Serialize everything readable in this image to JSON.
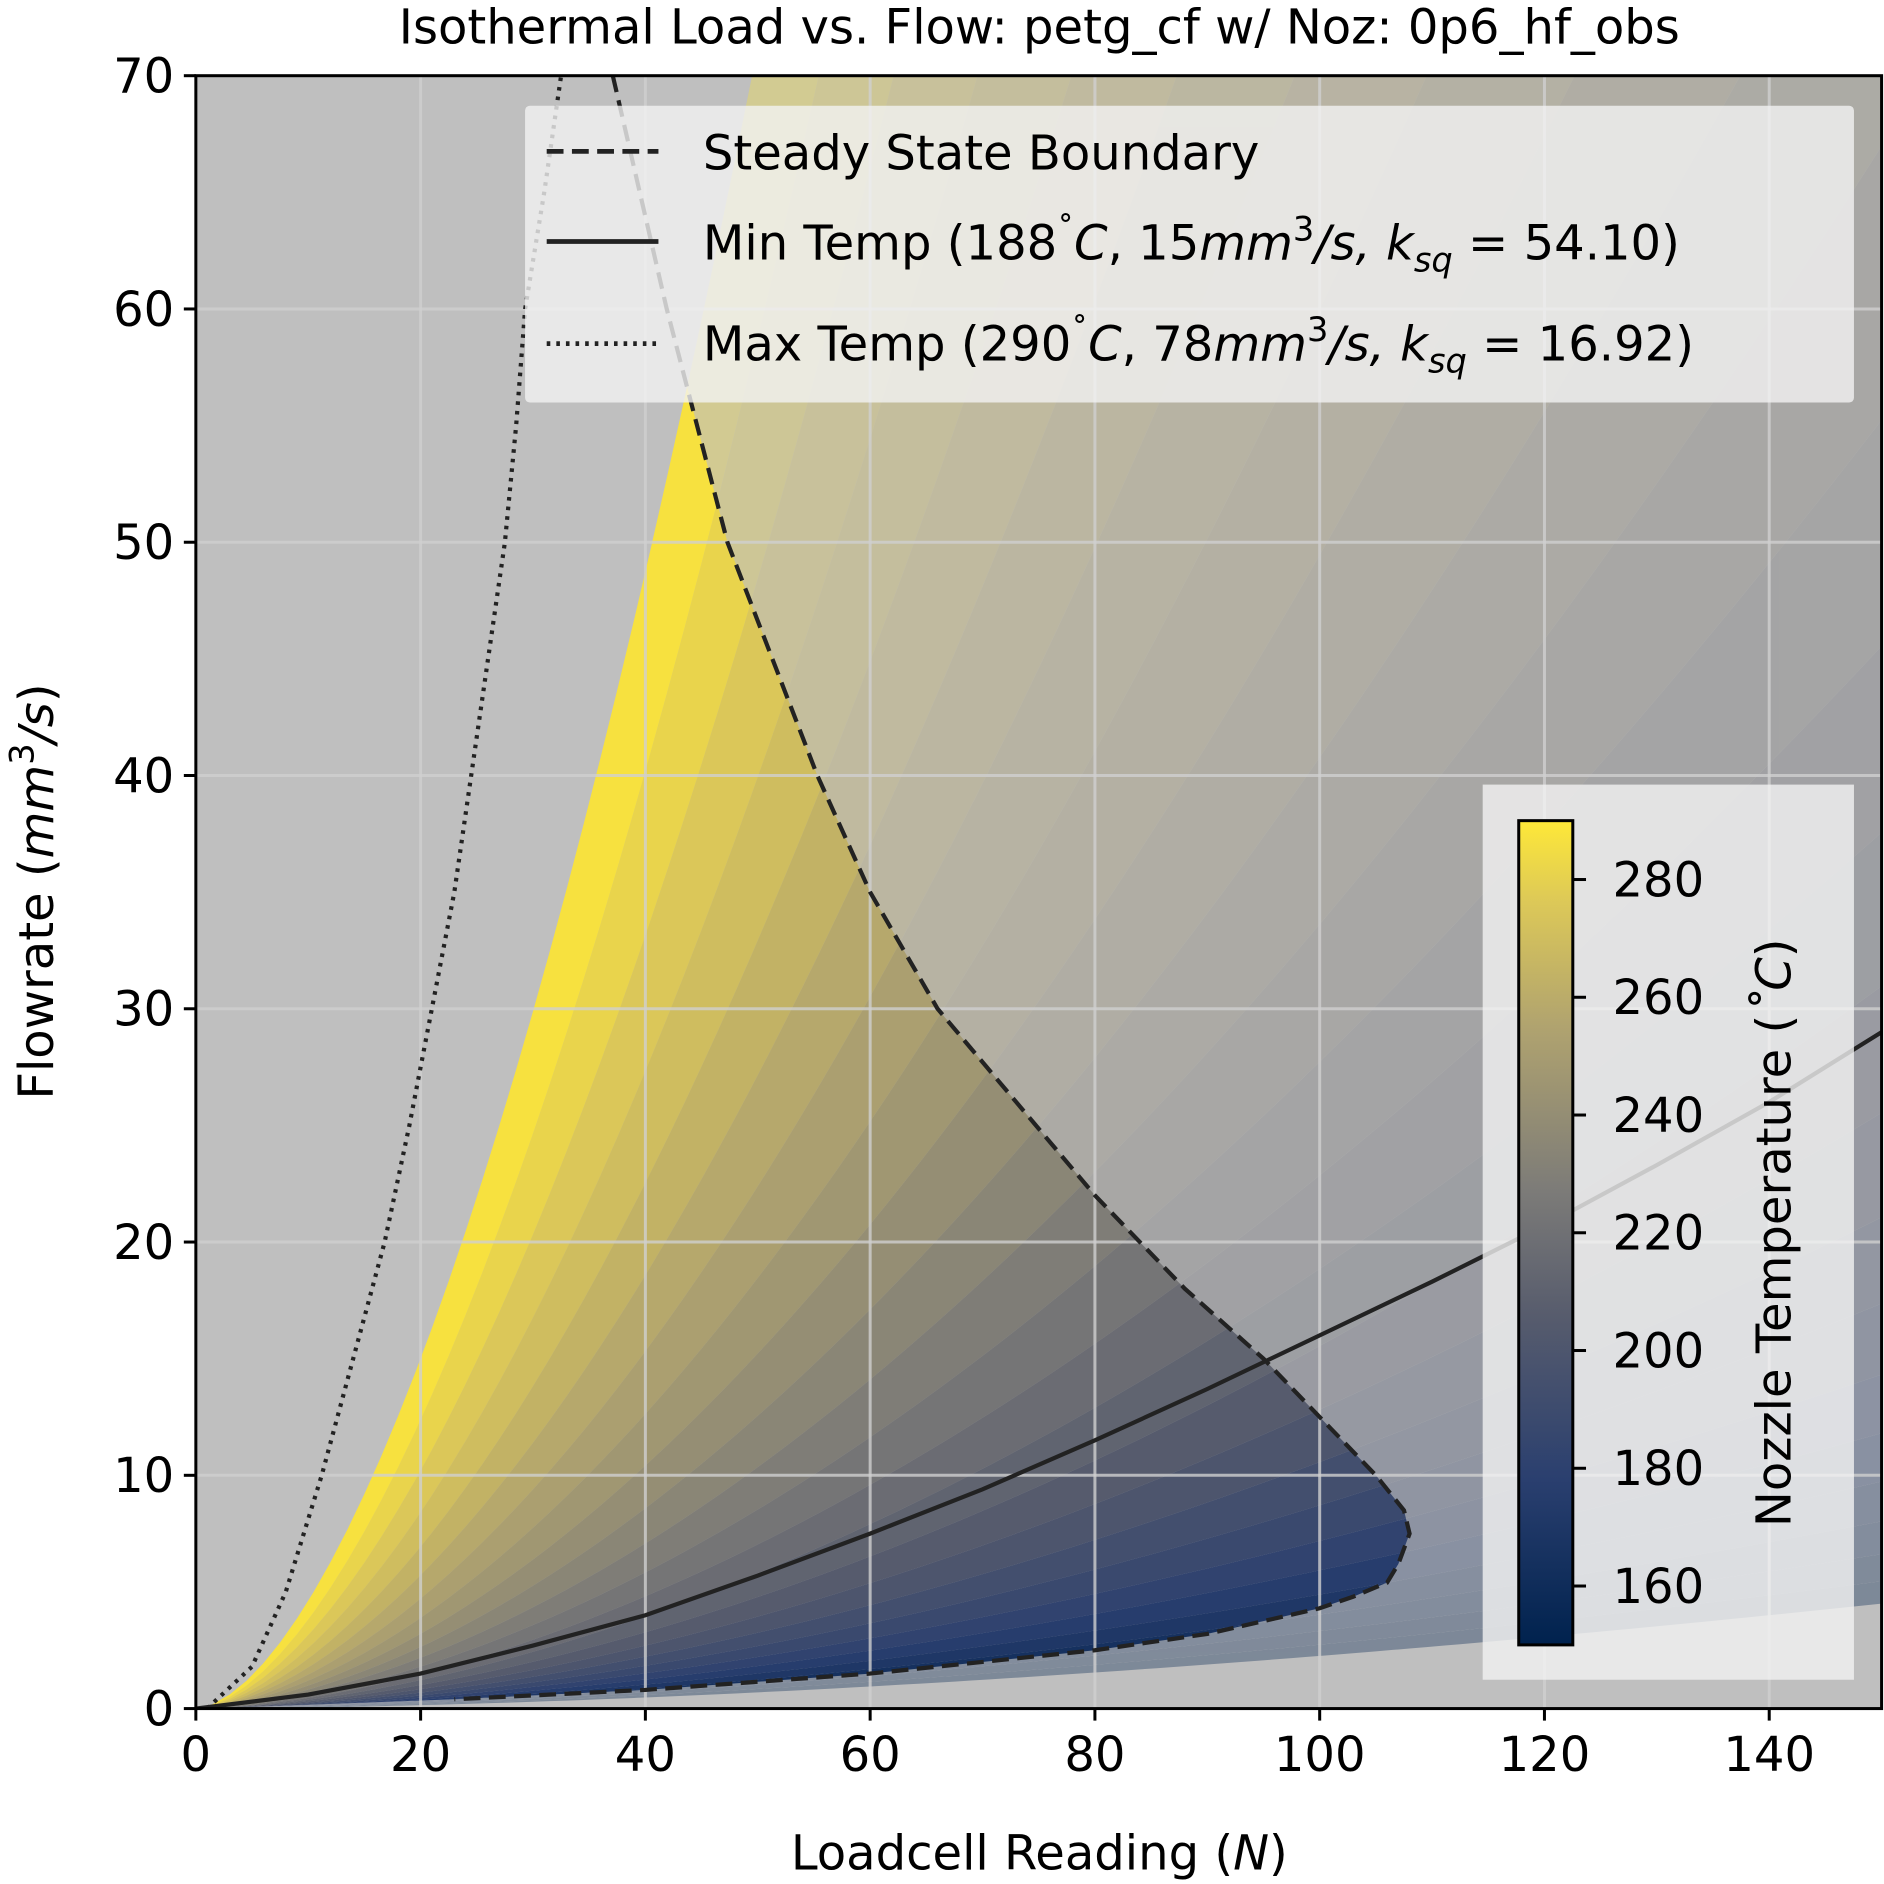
{
  "chart_data": {
    "type": "line",
    "title": "Isothermal Load vs. Flow: petg_cf w/ Noz: 0p6_hf_obs",
    "xlabel": {
      "text": "Loadcell Reading (",
      "unit": "N",
      "close": ")"
    },
    "ylabel": {
      "text": "Flowrate (",
      "unit": "mm",
      "sup": "3",
      "tail": "/s",
      "close": ")"
    },
    "xlim": [
      0,
      150
    ],
    "ylim": [
      0,
      70
    ],
    "xticks": [
      "0",
      "20",
      "40",
      "60",
      "80",
      "100",
      "120",
      "140"
    ],
    "yticks": [
      "0",
      "10",
      "20",
      "30",
      "40",
      "50",
      "60",
      "70"
    ],
    "xtick_values": [
      0,
      20,
      40,
      60,
      80,
      100,
      120,
      140
    ],
    "ytick_values": [
      0,
      10,
      20,
      30,
      40,
      50,
      60,
      70
    ],
    "grid": true,
    "legend_placement": "top-right",
    "legend": [
      {
        "style": "dashed",
        "label": "Steady State Boundary"
      },
      {
        "style": "solid",
        "name": "Min Temp",
        "temp": "188",
        "flow": "15",
        "ksq": "54.10"
      },
      {
        "style": "dotted",
        "name": "Max Temp",
        "temp": "290",
        "flow": "78",
        "ksq": "16.92"
      }
    ],
    "series": [
      {
        "name": "Steady State Boundary",
        "style": "dashed",
        "x": [
          37.1,
          41.9,
          47.3,
          55.3,
          60,
          66,
          73,
          80,
          88,
          95,
          101,
          105,
          107.5,
          108,
          107,
          106,
          103,
          100,
          90,
          80,
          60,
          40,
          23
        ],
        "y": [
          70,
          60,
          50,
          40,
          35,
          30,
          26,
          22,
          18,
          15,
          12,
          10,
          8.5,
          7.5,
          6.2,
          5.4,
          4.8,
          4.3,
          3.2,
          2.5,
          1.5,
          0.8,
          0.4
        ]
      },
      {
        "name": "Min Temp",
        "style": "solid",
        "x": [
          0,
          10,
          20,
          30,
          40,
          50,
          60,
          70,
          80,
          90,
          100,
          110,
          120,
          130,
          140,
          150
        ],
        "y": [
          0,
          0.6,
          1.5,
          2.7,
          4.0,
          5.7,
          7.5,
          9.4,
          11.5,
          13.7,
          16.0,
          18.3,
          20.7,
          23.3,
          26.0,
          29.0
        ]
      },
      {
        "name": "Max Temp",
        "style": "dotted",
        "x": [
          1,
          5,
          8,
          11.2,
          14,
          16.8,
          19,
          21,
          23,
          24.5,
          26,
          27.5,
          28.5,
          29.3,
          31,
          32.5
        ],
        "y": [
          0,
          1.8,
          5,
          10,
          15,
          20,
          25,
          30,
          35,
          40,
          45,
          50,
          55,
          60,
          65,
          70
        ]
      }
    ],
    "colorbar": {
      "label": "Nozzle Temperature (",
      "unit": "˚C",
      "close": ")",
      "range": [
        150,
        290
      ],
      "ticks": [
        "160",
        "180",
        "200",
        "220",
        "240",
        "260",
        "280"
      ],
      "tick_values": [
        160,
        180,
        200,
        220,
        240,
        260,
        280
      ],
      "colormap": "cividis"
    }
  }
}
